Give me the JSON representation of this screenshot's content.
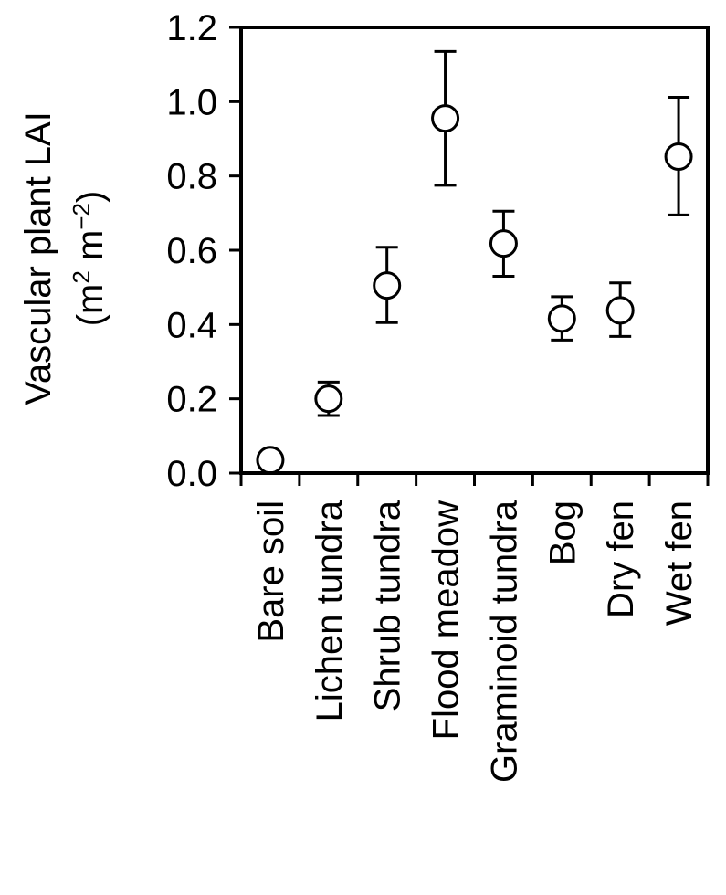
{
  "chart_data": {
    "type": "scatter",
    "categories": [
      "Bare soil",
      "Lichen tundra",
      "Shrub tundra",
      "Flood meadow",
      "Graminoid tundra",
      "Bog",
      "Dry fen",
      "Wet fen"
    ],
    "values": [
      0.035,
      0.2,
      0.505,
      0.955,
      0.618,
      0.416,
      0.438,
      0.852
    ],
    "error_low": [
      0.035,
      0.155,
      0.405,
      0.775,
      0.53,
      0.358,
      0.368,
      0.695
    ],
    "error_high": [
      0.035,
      0.245,
      0.608,
      1.135,
      0.705,
      0.475,
      0.512,
      1.012
    ],
    "ylabel": "Vascular plant LAI",
    "yunit": {
      "open": "(m",
      "sup1": "2",
      "mid": " m",
      "sup2": "−2",
      "close": ")"
    },
    "ylim": [
      0,
      1.2
    ],
    "yticks": [
      "0.0",
      "0.2",
      "0.4",
      "0.6",
      "0.8",
      "1.0",
      "1.2"
    ],
    "grid": false,
    "marker": "open-circle",
    "colors": {
      "line": "#000000",
      "marker_fill": "#ffffff"
    }
  }
}
